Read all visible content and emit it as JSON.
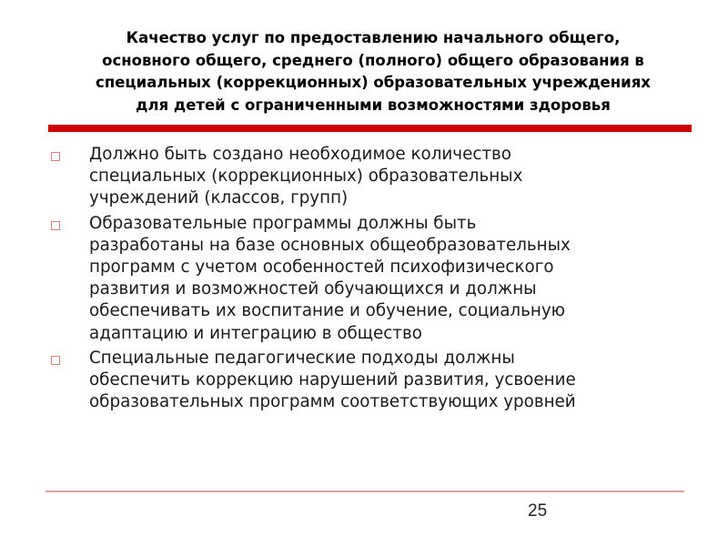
{
  "title": {
    "lines": [
      "Качество услуг по предоставлению начального общего,",
      "основного общего, среднего (полного) общего образования в",
      "специальных (коррекционных) образовательных учреждениях",
      "для детей с ограниченными возможностями здоровья"
    ]
  },
  "accent_color": "#cc0000",
  "bullet_icon": "hollow-square-icon",
  "bullets": [
    {
      "lines": [
        "Должно быть создано необходимое количество",
        "специальных (коррекционных) образовательных",
        "учреждений (классов, групп)"
      ]
    },
    {
      "lines": [
        "Образовательные программы должны быть",
        "разработаны на базе основных общеобразовательных",
        "программ с учетом особенностей психофизического",
        "развития и возможностей обучающихся и должны",
        "обеспечивать их воспитание и обучение, социальную",
        "адаптацию и интеграцию в общество"
      ]
    },
    {
      "lines": [
        "Специальные педагогические подходы должны",
        "обеспечить коррекцию нарушений развития, усвоение",
        "образовательных программ соответствующих уровней"
      ]
    }
  ],
  "page_number": "25"
}
